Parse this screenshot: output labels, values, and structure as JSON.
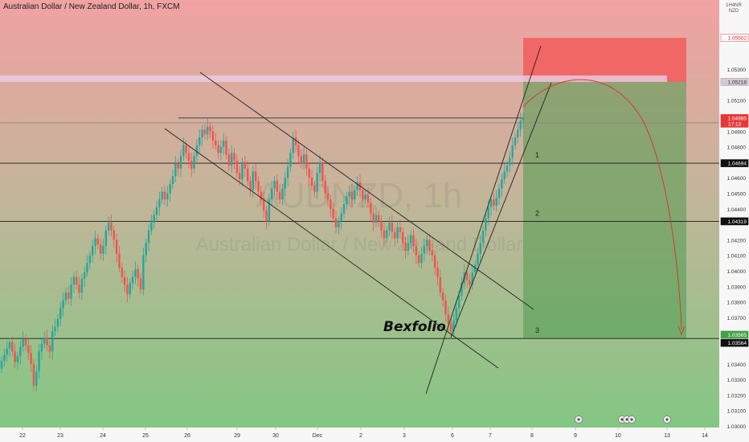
{
  "header": {
    "symbol_name": "Australian Dollar / New Zealand Dollar",
    "interval": "1h",
    "source": "FXCM"
  },
  "watermark": {
    "symbol": "AUDNZD, 1h",
    "name": "Australian Dollar / New Zealand Dollar"
  },
  "currency": {
    "quote": "NZD",
    "top_label": "1H4NR"
  },
  "colors": {
    "up_candle": "#26a69a",
    "down_candle": "#ef5350",
    "stop_zone": "#f25c5c",
    "target_zone": "#4e9a4e",
    "top_gradient": "#f0a0a0",
    "bottom_gradient": "#86c886",
    "last_price_badge": "#e53935",
    "target_badge": "#43a047"
  },
  "author_label": "Bexfolio",
  "chart_data": {
    "type": "candlestick",
    "y_axis": {
      "ticks": [
        "1.05300",
        "1.05100",
        "1.04900",
        "1.04800",
        "1.04600",
        "1.04500",
        "1.04400",
        "1.04200",
        "1.04100",
        "1.04000",
        "1.03900",
        "1.03800",
        "1.03700",
        "1.03600",
        "1.03400",
        "1.03300",
        "1.03200",
        "1.03100",
        "1.03000"
      ],
      "range": [
        1.03,
        1.0562
      ]
    },
    "x_axis": {
      "ticks": [
        "22",
        "23",
        "24",
        "25",
        "26",
        "29",
        "30",
        "Dec",
        "2",
        "3",
        "6",
        "7",
        "8",
        "9",
        "10",
        "13",
        "14"
      ]
    },
    "price_badges": [
      {
        "value": "1.05502",
        "style": "stop"
      },
      {
        "value": "1.05218",
        "style": "entry"
      },
      {
        "value": "1.04985",
        "sub": "17:13",
        "style": "last"
      },
      {
        "value": "1.04694",
        "style": "level"
      },
      {
        "value": "1.04319",
        "style": "level"
      },
      {
        "value": "1.03565",
        "style": "target"
      },
      {
        "value": "1.03564",
        "style": "level"
      }
    ],
    "horizontal_levels": [
      {
        "price": 1.04694,
        "label": "1"
      },
      {
        "price": 1.04319,
        "label": "2"
      },
      {
        "price": 1.03564,
        "label": "3"
      }
    ],
    "position": {
      "stop": 1.05502,
      "entry": 1.05218,
      "target": 1.03565
    },
    "resistance": 1.0497,
    "events": [
      "9",
      "10",
      "13"
    ],
    "candles_close": [
      1.0342,
      1.0346,
      1.035,
      1.0354,
      1.0348,
      1.0341,
      1.0345,
      1.0351,
      1.0356,
      1.0352,
      1.0347,
      1.034,
      1.0326,
      1.0335,
      1.0348,
      1.0353,
      1.0357,
      1.0352,
      1.0348,
      1.0361,
      1.0364,
      1.0369,
      1.0376,
      1.0381,
      1.0386,
      1.0382,
      1.0391,
      1.0396,
      1.0391,
      1.0386,
      1.0395,
      1.0399,
      1.0405,
      1.041,
      1.0416,
      1.0421,
      1.0417,
      1.0411,
      1.0416,
      1.0426,
      1.0431,
      1.0426,
      1.042,
      1.0411,
      1.0402,
      1.0396,
      1.0391,
      1.0385,
      1.0392,
      1.0396,
      1.0401,
      1.0395,
      1.0388,
      1.041,
      1.0418,
      1.0426,
      1.0431,
      1.0436,
      1.0441,
      1.0446,
      1.0451,
      1.0446,
      1.045,
      1.0456,
      1.0461,
      1.0469,
      1.0466,
      1.0474,
      1.0481,
      1.0476,
      1.0471,
      1.0466,
      1.0474,
      1.0481,
      1.0486,
      1.0491,
      1.0488,
      1.0493,
      1.049,
      1.0484,
      1.0481,
      1.0476,
      1.048,
      1.0484,
      1.0475,
      1.0468,
      1.0476,
      1.0471,
      1.0463,
      1.0459,
      1.047,
      1.0466,
      1.0458,
      1.0452,
      1.0464,
      1.0458,
      1.0451,
      1.0446,
      1.0439,
      1.0432,
      1.0446,
      1.0453,
      1.0458,
      1.0451,
      1.0446,
      1.0453,
      1.046,
      1.0467,
      1.0476,
      1.0486,
      1.0481,
      1.0474,
      1.0469,
      1.0475,
      1.0466,
      1.046,
      1.0455,
      1.0451,
      1.0463,
      1.047,
      1.0458,
      1.045,
      1.0446,
      1.044,
      1.0434,
      1.0428,
      1.0432,
      1.0437,
      1.0443,
      1.0448,
      1.0451,
      1.0446,
      1.0452,
      1.0457,
      1.0452,
      1.0446,
      1.0449,
      1.0444,
      1.0437,
      1.0431,
      1.0436,
      1.0432,
      1.0426,
      1.0421,
      1.0426,
      1.0431,
      1.0425,
      1.0421,
      1.0428,
      1.0425,
      1.0418,
      1.0413,
      1.0418,
      1.0423,
      1.0416,
      1.041,
      1.0405,
      1.0411,
      1.0416,
      1.042,
      1.0413,
      1.041,
      1.0402,
      1.0396,
      1.0386,
      1.0381,
      1.0372,
      1.0366,
      1.0361,
      1.0368,
      1.0376,
      1.0384,
      1.0392,
      1.0399,
      1.0394,
      1.0391,
      1.0399,
      1.0404,
      1.0411,
      1.0418,
      1.0426,
      1.0434,
      1.0441,
      1.0446,
      1.0442,
      1.0447,
      1.0453,
      1.0459,
      1.0464,
      1.0468,
      1.0473,
      1.0481,
      1.0486,
      1.0491,
      1.0497,
      1.0499
    ]
  }
}
